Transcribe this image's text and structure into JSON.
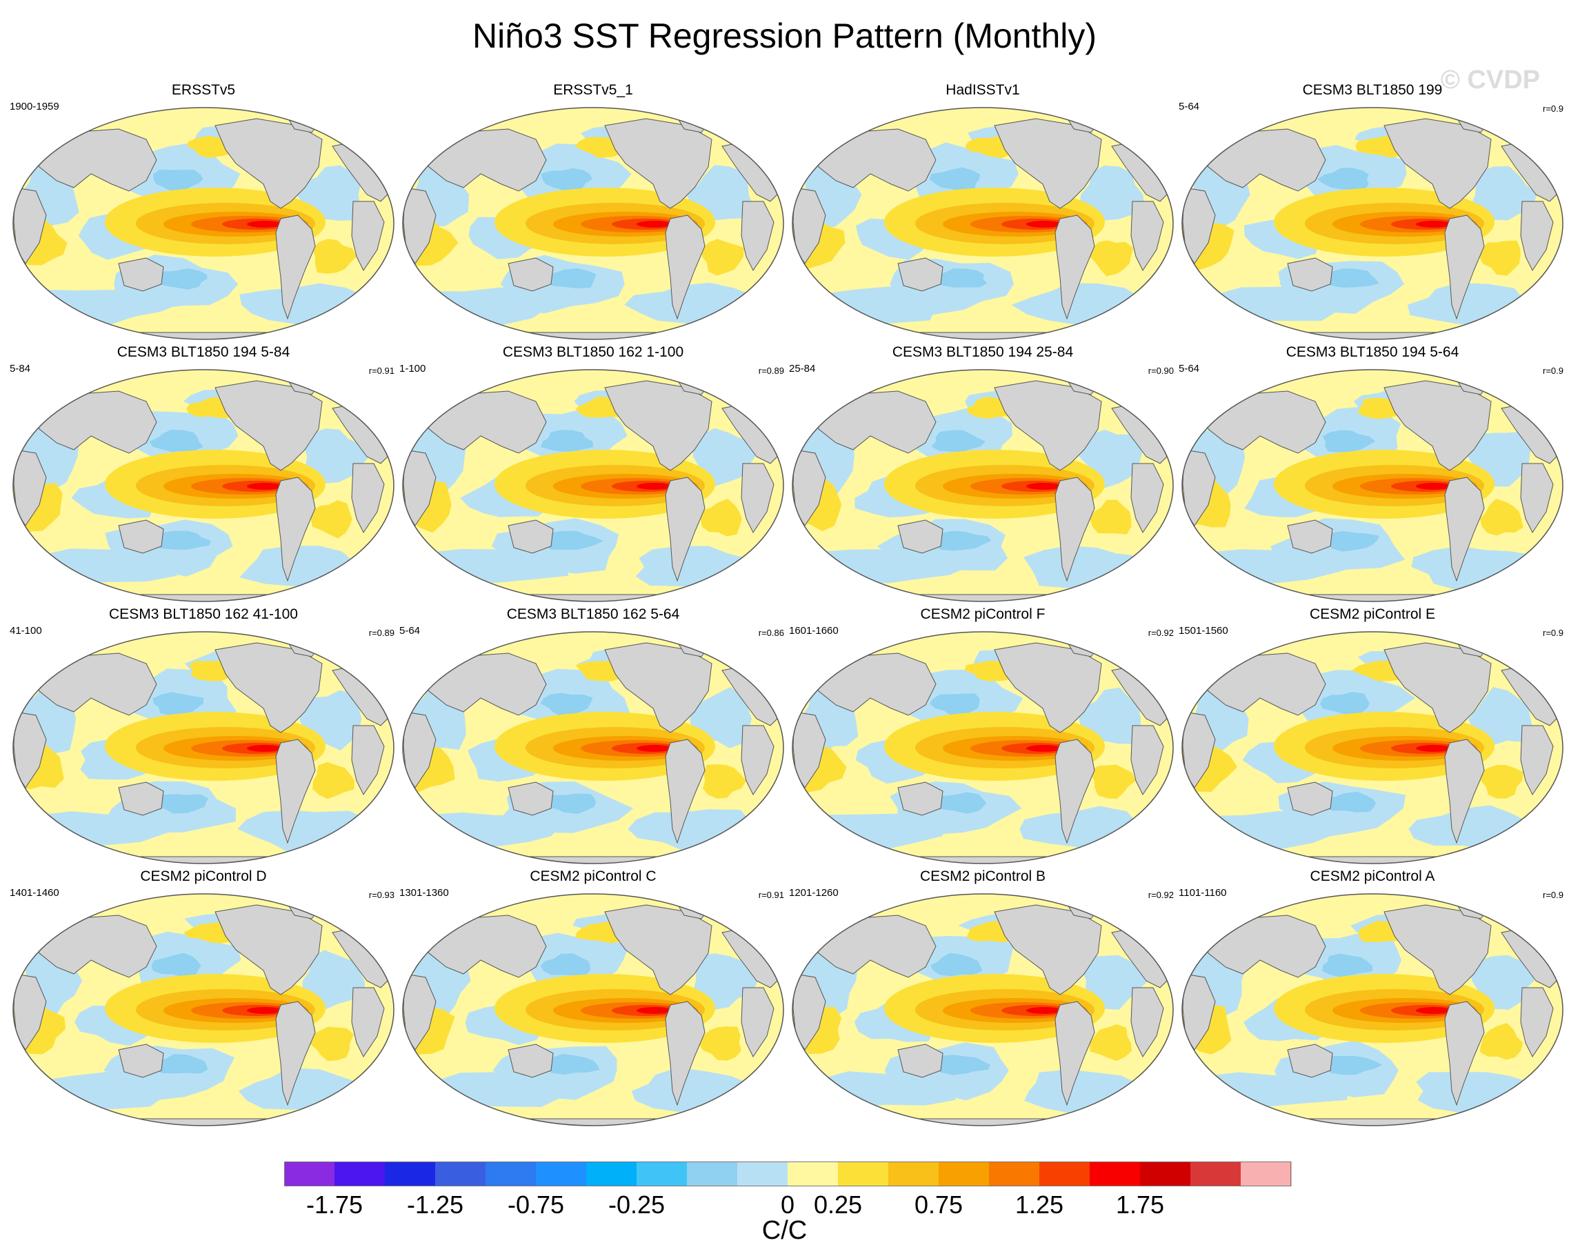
{
  "title": "Niño3 SST Regression Pattern (Monthly)",
  "watermark": "© CVDP",
  "panels": [
    {
      "title": "ERSSTv5",
      "period": "1900-1959",
      "corr": ""
    },
    {
      "title": "ERSSTv5_1",
      "period": "",
      "corr": ""
    },
    {
      "title": "HadISSTv1",
      "period": "",
      "corr": ""
    },
    {
      "title": "CESM3 BLT1850 199",
      "period": "5-64",
      "corr": "r=0.9"
    },
    {
      "title": "CESM3 BLT1850 194 5-84",
      "period": "5-84",
      "corr": "r=0.91"
    },
    {
      "title": "CESM3 BLT1850 162 1-100",
      "period": "1-100",
      "corr": "r=0.89"
    },
    {
      "title": "CESM3 BLT1850 194 25-84",
      "period": "25-84",
      "corr": "r=0.90"
    },
    {
      "title": "CESM3 BLT1850 194 5-64",
      "period": "5-64",
      "corr": "r=0.9"
    },
    {
      "title": "CESM3 BLT1850 162 41-100",
      "period": "41-100",
      "corr": "r=0.89"
    },
    {
      "title": "CESM3 BLT1850 162 5-64",
      "period": "5-64",
      "corr": "r=0.86"
    },
    {
      "title": "CESM2 piControl F",
      "period": "1601-1660",
      "corr": "r=0.92"
    },
    {
      "title": "CESM2 piControl E",
      "period": "1501-1560",
      "corr": "r=0.9"
    },
    {
      "title": "CESM2 piControl D",
      "period": "1401-1460",
      "corr": "r=0.93"
    },
    {
      "title": "CESM2 piControl C",
      "period": "1301-1360",
      "corr": "r=0.91"
    },
    {
      "title": "CESM2 piControl B",
      "period": "1201-1260",
      "corr": "r=0.92"
    },
    {
      "title": "CESM2 piControl A",
      "period": "1101-1160",
      "corr": "r=0.9"
    }
  ],
  "colorbar": {
    "units": "C/C",
    "colors": [
      "#8a2be2",
      "#4b16f0",
      "#1a28e6",
      "#3a5ee0",
      "#2e7af0",
      "#1e90ff",
      "#00b0f8",
      "#40c4f8",
      "#90d0f0",
      "#b8e0f4",
      "#fff8a0",
      "#fce038",
      "#f8c018",
      "#f8a000",
      "#f87800",
      "#f84000",
      "#f80000",
      "#d00000",
      "#d83838",
      "#f8b0b0"
    ],
    "tick_labels": [
      "-1.75",
      "-1.25",
      "-0.75",
      "-0.25",
      "0",
      "0.25",
      "0.75",
      "1.25",
      "1.75"
    ]
  },
  "palette": {
    "ocean_neutral": "#b8e0f4",
    "ocean_warm": "#fff8a0",
    "land": "#d3d3d3",
    "coast": "#555555"
  }
}
